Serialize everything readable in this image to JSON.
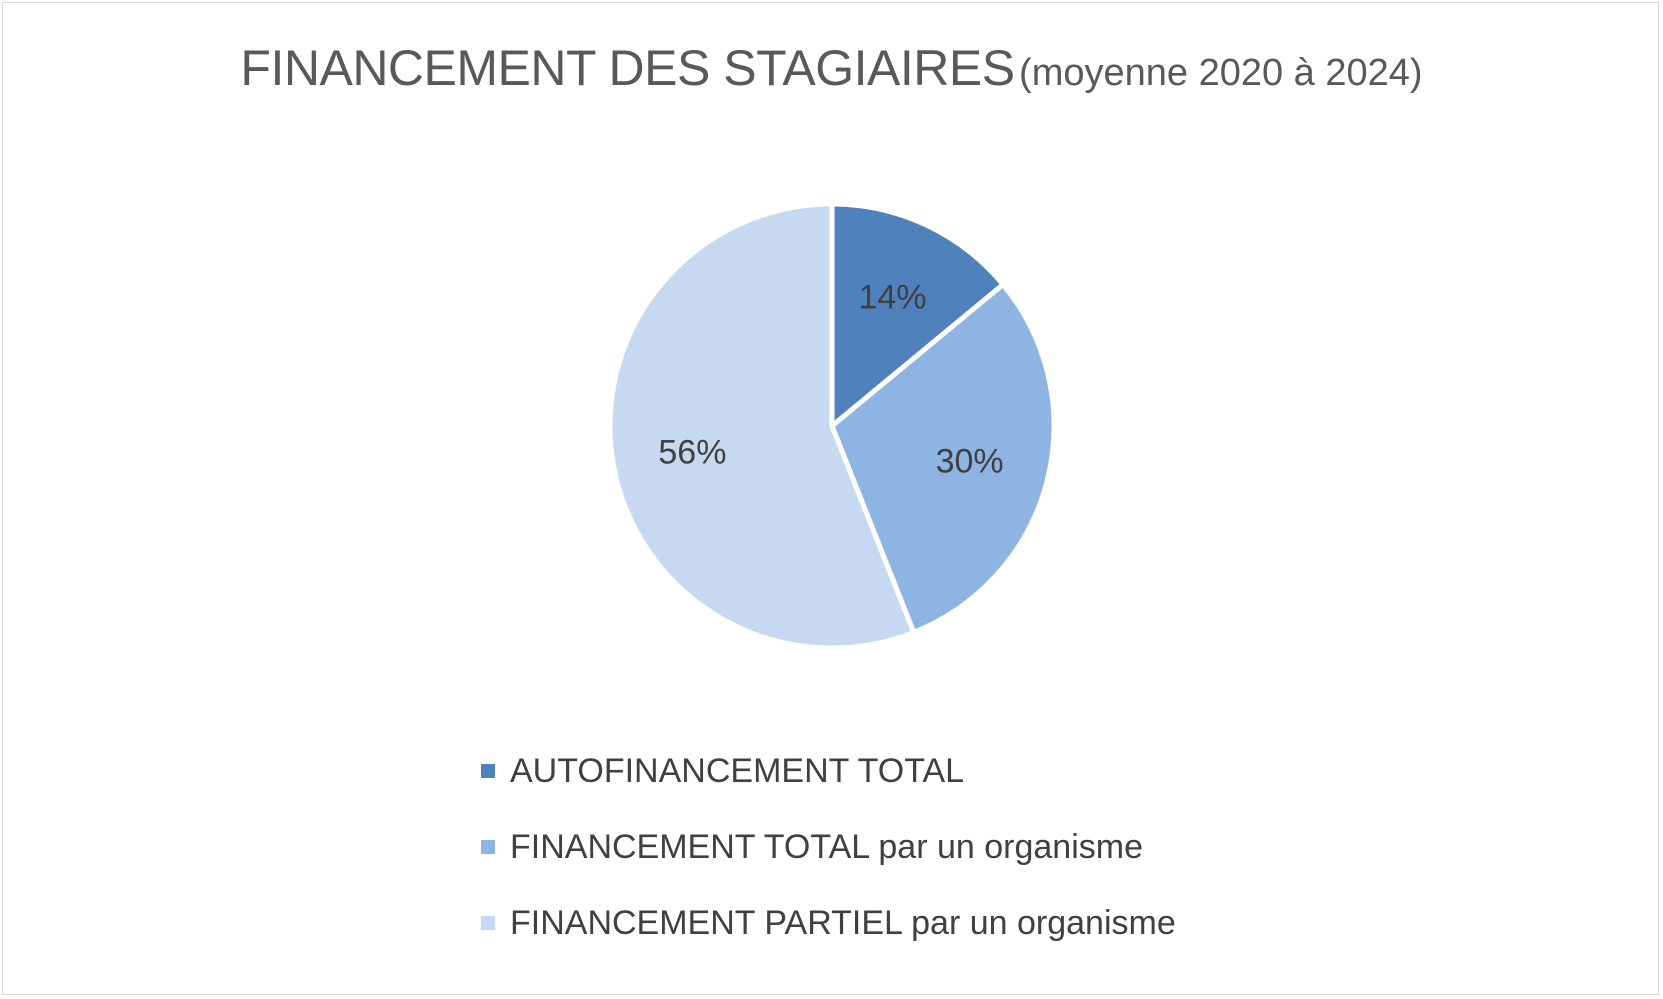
{
  "chart_data": {
    "type": "pie",
    "title": "FINANCEMENT DES STAGIAIRES",
    "subtitle": "(moyenne 2020 à 2024)",
    "categories": [
      "AUTOFINANCEMENT TOTAL",
      "FINANCEMENT TOTAL par un organisme",
      "FINANCEMENT PARTIEL par un organisme"
    ],
    "values": [
      14,
      30,
      56
    ],
    "data_labels": [
      "14%",
      "30%",
      "56%"
    ],
    "colors": [
      "#4f81bd",
      "#8eb4e3",
      "#c6d9f1"
    ],
    "legend_position": "bottom"
  },
  "legend": {
    "items": [
      {
        "strong": "AUTOFINANCEMENT TOTAL",
        "rest": ""
      },
      {
        "strong": "FINANCEMENT TOTAL",
        "rest": " par un organisme"
      },
      {
        "strong": "FINANCEMENT PARTIEL",
        "rest": " par un organisme"
      }
    ]
  }
}
